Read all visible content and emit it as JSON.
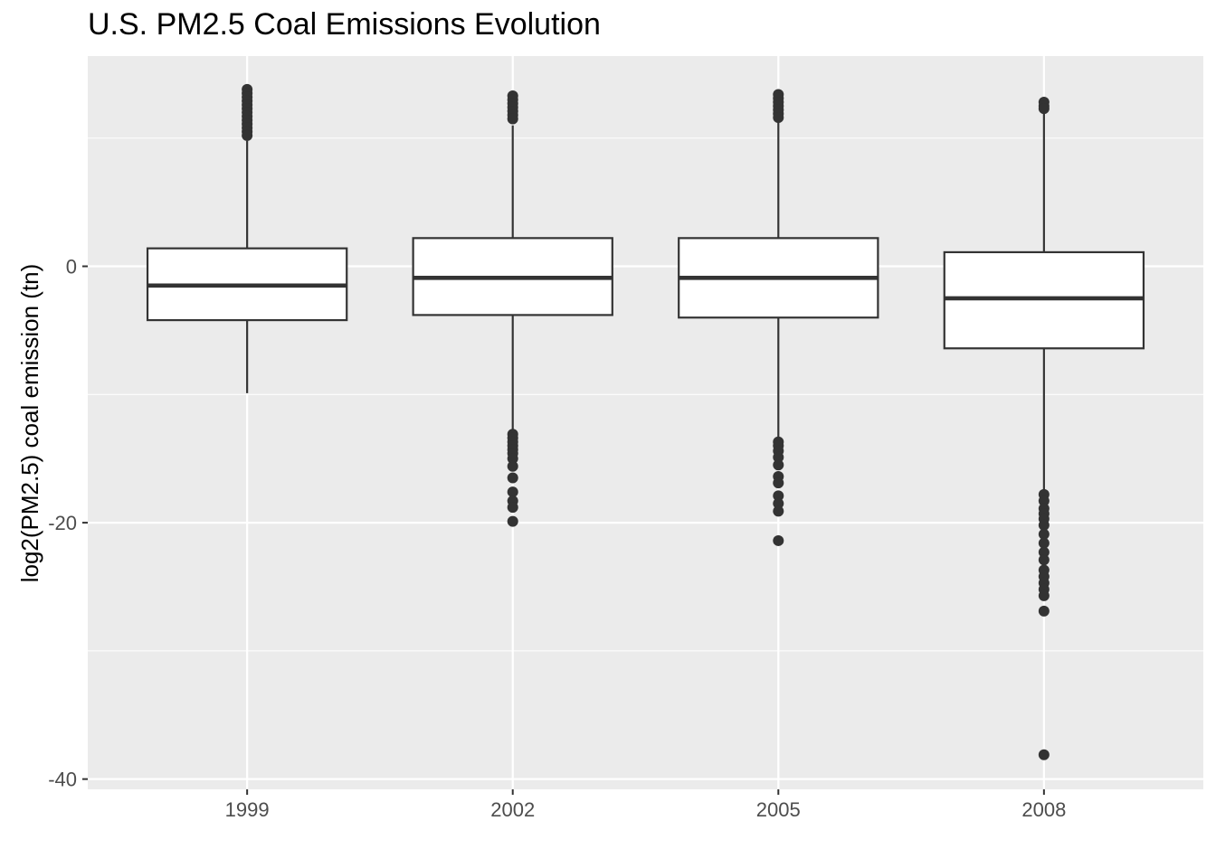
{
  "chart_data": {
    "type": "boxplot",
    "title": "U.S. PM2.5 Coal Emissions Evolution",
    "xlabel": "",
    "ylabel": "log2(PM2.5) coal emission (tn)",
    "categories": [
      "1999",
      "2002",
      "2005",
      "2008"
    ],
    "ylim": [
      -40.8,
      16.4
    ],
    "yticks": [
      0,
      -20,
      -40
    ],
    "ytick_labels": [
      "0",
      "-20",
      "-40"
    ],
    "grid": true,
    "legend": "none",
    "colors": {
      "panel": "#EBEBEB",
      "grid": "#FFFFFF",
      "box_fill": "#FFFFFF",
      "box_line": "#333333"
    },
    "boxes": [
      {
        "category": "1999",
        "q1": -4.2,
        "median": -1.5,
        "q3": 1.4,
        "whisker_low": -9.9,
        "whisker_high": 9.8,
        "outliers": [
          13.8,
          13.5,
          13.2,
          12.9,
          12.6,
          12.3,
          12.0,
          11.7,
          11.4,
          11.1,
          10.8,
          10.5,
          10.2
        ]
      },
      {
        "category": "2002",
        "q1": -3.8,
        "median": -0.9,
        "q3": 2.2,
        "whisker_low": -12.9,
        "whisker_high": 11.0,
        "outliers": [
          13.3,
          13.0,
          12.7,
          12.4,
          12.1,
          11.8,
          11.5,
          -13.1,
          -13.4,
          -13.7,
          -14.0,
          -14.3,
          -14.6,
          -15.0,
          -15.6,
          -16.5,
          -17.6,
          -18.3,
          -18.8,
          -19.9
        ]
      },
      {
        "category": "2005",
        "q1": -4.0,
        "median": -0.9,
        "q3": 2.2,
        "whisker_low": -13.5,
        "whisker_high": 11.3,
        "outliers": [
          13.4,
          13.1,
          12.8,
          12.5,
          12.2,
          11.9,
          11.6,
          -13.7,
          -14.0,
          -14.4,
          -14.9,
          -15.5,
          -16.4,
          -16.9,
          -17.9,
          -18.5,
          -19.1,
          -21.4
        ]
      },
      {
        "category": "2008",
        "q1": -6.4,
        "median": -2.5,
        "q3": 1.1,
        "whisker_low": -17.5,
        "whisker_high": 12.2,
        "outliers": [
          12.8,
          12.5,
          12.3,
          -17.8,
          -18.3,
          -18.9,
          -19.3,
          -19.7,
          -20.2,
          -20.9,
          -21.6,
          -22.3,
          -22.9,
          -23.7,
          -24.2,
          -24.7,
          -25.2,
          -25.7,
          -26.9,
          -38.1
        ]
      }
    ]
  }
}
